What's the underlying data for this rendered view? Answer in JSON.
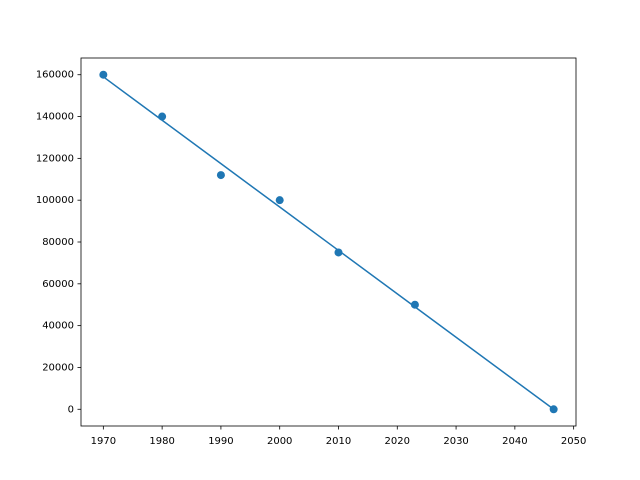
{
  "chart_data": {
    "type": "scatter",
    "x": [
      1970,
      1980,
      1990,
      2000,
      2010,
      2023,
      2046.6
    ],
    "series": [
      {
        "type": "scatter",
        "color": "#1f77b4",
        "values": [
          160000,
          140000,
          112000,
          100000,
          75000,
          50000,
          0
        ]
      },
      {
        "type": "line",
        "color": "#1f77b4",
        "values": [
          159000,
          138240,
          117480,
          96720,
          75960,
          48970,
          0
        ]
      }
    ],
    "xlim": [
      1966.2,
      2050.4
    ],
    "xticks": [
      1970,
      1980,
      1990,
      2000,
      2010,
      2020,
      2030,
      2040,
      2050
    ],
    "ylim": [
      -8000,
      168000
    ],
    "yticks": [
      0,
      20000,
      40000,
      60000,
      80000,
      100000,
      120000,
      140000,
      160000
    ],
    "grid": false
  }
}
